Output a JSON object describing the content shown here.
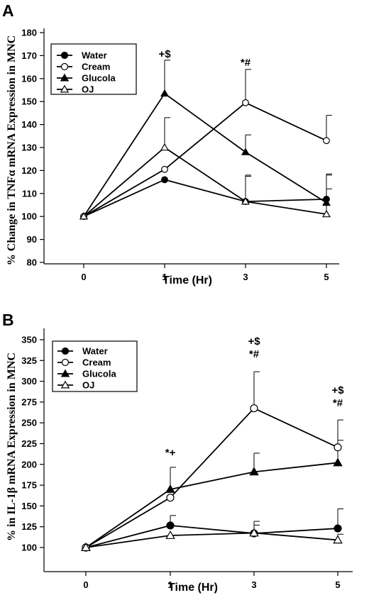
{
  "chart_data": [
    {
      "panel": "A",
      "type": "line",
      "xlabel": "Time (Hr)",
      "ylabel": "% Change in TNFα mRNA Expression in MNC",
      "x": [
        0,
        1,
        3,
        5
      ],
      "ylim": [
        80,
        180
      ],
      "yticks": [
        80,
        90,
        100,
        110,
        120,
        130,
        140,
        150,
        160,
        170,
        180
      ],
      "xticks": [
        "0",
        "1",
        "3",
        "5"
      ],
      "legend_position": "top-left",
      "series": [
        {
          "name": "Water",
          "marker": "filled-circle",
          "values": [
            100,
            116,
            106.5,
            107.5
          ],
          "errors": [
            0,
            0,
            11,
            10.5
          ]
        },
        {
          "name": "Cream",
          "marker": "open-circle",
          "values": [
            100,
            120.5,
            149.5,
            133
          ],
          "errors": [
            0,
            0,
            14.5,
            11
          ]
        },
        {
          "name": "Glucola",
          "marker": "filled-triangle",
          "values": [
            100,
            153.5,
            128,
            106
          ],
          "errors": [
            0,
            14.5,
            7.5,
            6
          ]
        },
        {
          "name": "OJ",
          "marker": "open-triangle",
          "values": [
            100,
            130,
            106.5,
            101
          ],
          "errors": [
            0,
            13,
            11.5,
            17.5
          ]
        }
      ],
      "annotations": [
        {
          "x": 1,
          "text": "+$"
        },
        {
          "x": 3,
          "text": "*#"
        }
      ]
    },
    {
      "panel": "B",
      "type": "line",
      "xlabel": "Time (Hr)",
      "ylabel": "% in IL-1β mRNA Expression in MNC",
      "x": [
        0,
        1,
        3,
        5
      ],
      "ylim": [
        75,
        360
      ],
      "yticks": [
        100,
        125,
        150,
        175,
        200,
        225,
        250,
        275,
        300,
        325,
        350
      ],
      "xticks": [
        "0",
        "1",
        "3",
        "5"
      ],
      "legend_position": "top-left",
      "series": [
        {
          "name": "Water",
          "marker": "filled-circle",
          "values": [
            100,
            126.5,
            117,
            123
          ],
          "errors": [
            0,
            12,
            10,
            23.5
          ]
        },
        {
          "name": "Cream",
          "marker": "open-circle",
          "values": [
            100,
            160,
            267.5,
            220.5
          ],
          "errors": [
            0,
            0,
            44,
            33
          ]
        },
        {
          "name": "Glucola",
          "marker": "filled-triangle",
          "values": [
            100,
            170,
            191,
            202
          ],
          "errors": [
            0,
            26.5,
            22.5,
            27
          ]
        },
        {
          "name": "OJ",
          "marker": "open-triangle",
          "values": [
            100,
            114.5,
            117.5,
            109
          ],
          "errors": [
            0,
            0,
            14,
            7
          ]
        }
      ],
      "annotations": [
        {
          "x": 1,
          "text": "*+"
        },
        {
          "x": 3,
          "text": "+$ *#"
        },
        {
          "x": 5,
          "text": "+$ *#"
        }
      ]
    }
  ]
}
